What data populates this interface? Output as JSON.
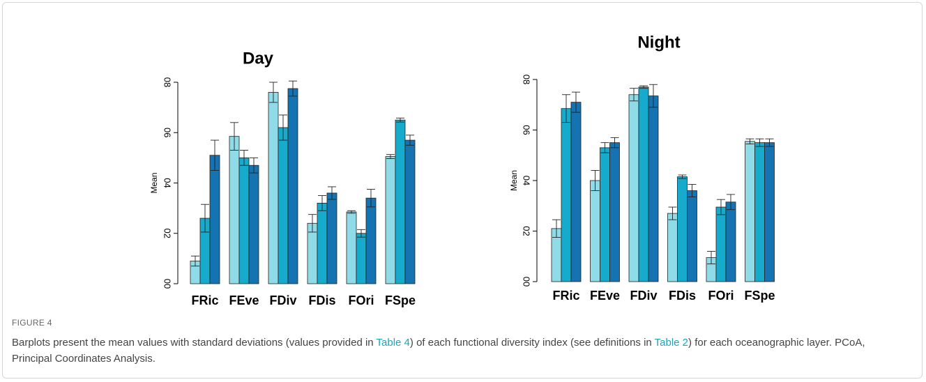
{
  "chart_data": [
    {
      "type": "bar",
      "title": "Day",
      "ylabel": "Mean",
      "categories": [
        "FRic",
        "FEve",
        "FDiv",
        "FDis",
        "FOri",
        "FSpe"
      ],
      "ylim": [
        0,
        0.8
      ],
      "yticks": [
        {
          "value": 0,
          "label": "00"
        },
        {
          "value": 0.2,
          "label": "02"
        },
        {
          "value": 0.4,
          "label": "04"
        },
        {
          "value": 0.6,
          "label": "06"
        },
        {
          "value": 0.8,
          "label": "08"
        }
      ],
      "series": [
        {
          "color": "#8fdbe8",
          "values": [
            0.09,
            0.585,
            0.76,
            0.24,
            0.285,
            0.505
          ],
          "errors": [
            0.02,
            0.055,
            0.04,
            0.035,
            0.005,
            0.008
          ]
        },
        {
          "color": "#16abcc",
          "values": [
            0.26,
            0.5,
            0.62,
            0.32,
            0.2,
            0.65
          ],
          "errors": [
            0.055,
            0.03,
            0.05,
            0.03,
            0.015,
            0.008
          ]
        },
        {
          "color": "#1473b0",
          "values": [
            0.51,
            0.47,
            0.775,
            0.36,
            0.34,
            0.57
          ],
          "errors": [
            0.06,
            0.03,
            0.03,
            0.025,
            0.035,
            0.02
          ]
        }
      ]
    },
    {
      "type": "bar",
      "title": "Night",
      "ylabel": "Mean",
      "categories": [
        "FRic",
        "FEve",
        "FDiv",
        "FDis",
        "FOri",
        "FSpe"
      ],
      "ylim": [
        0,
        0.8
      ],
      "yticks": [
        {
          "value": 0,
          "label": "00"
        },
        {
          "value": 0.2,
          "label": "02"
        },
        {
          "value": 0.4,
          "label": "04"
        },
        {
          "value": 0.6,
          "label": "06"
        },
        {
          "value": 0.8,
          "label": "08"
        }
      ],
      "series": [
        {
          "color": "#8fdbe8",
          "values": [
            0.21,
            0.4,
            0.74,
            0.27,
            0.095,
            0.555
          ],
          "errors": [
            0.035,
            0.04,
            0.025,
            0.025,
            0.025,
            0.01
          ]
        },
        {
          "color": "#16abcc",
          "values": [
            0.685,
            0.53,
            0.77,
            0.415,
            0.295,
            0.55
          ],
          "errors": [
            0.055,
            0.02,
            0.005,
            0.007,
            0.03,
            0.015
          ]
        },
        {
          "color": "#1473b0",
          "values": [
            0.71,
            0.55,
            0.735,
            0.36,
            0.315,
            0.55
          ],
          "errors": [
            0.04,
            0.02,
            0.045,
            0.025,
            0.03,
            0.015
          ]
        }
      ]
    }
  ],
  "figure": {
    "label": "FIGURE 4",
    "caption": [
      "Barplots present the mean values with standard deviations (values provided in ",
      "Table 4",
      ") of each functional diversity index (see definitions in ",
      "Table 2",
      ") for each oceanographic layer. PCoA, Principal Coordinates Analysis."
    ]
  }
}
